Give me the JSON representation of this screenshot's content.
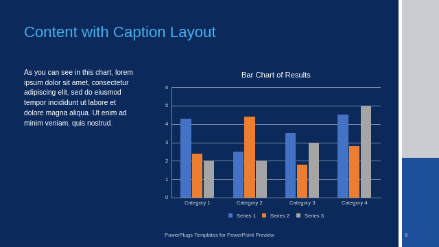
{
  "slide": {
    "title": "Content with Caption Layout",
    "caption": "As you can see in this chart, lorem ipsum dolor sit amet, consectetur adipiscing elit, sed do eiusmod tempor incididunt ut labore et dolore magna aliqua. Ut enim ad minim veniam, quis nostrud.",
    "footer": "PowerPlugs Templates for PowerPoint Preview",
    "page": 8
  },
  "chart_data": {
    "type": "bar",
    "title": "Bar Chart of Results",
    "categories": [
      "Category 1",
      "Category 2",
      "Category 3",
      "Category 4"
    ],
    "series": [
      {
        "name": "Series 1",
        "color": "#4472c4",
        "values": [
          4.3,
          2.5,
          3.5,
          4.5
        ]
      },
      {
        "name": "Series 2",
        "color": "#ed7d31",
        "values": [
          2.4,
          4.4,
          1.8,
          2.8
        ]
      },
      {
        "name": "Series 3",
        "color": "#a5a5a5",
        "values": [
          2,
          2,
          3,
          5
        ]
      }
    ],
    "ylim": [
      0,
      6
    ],
    "yticks": [
      0,
      1,
      2,
      3,
      4,
      5,
      6
    ],
    "grid": true,
    "legend": "bottom"
  }
}
